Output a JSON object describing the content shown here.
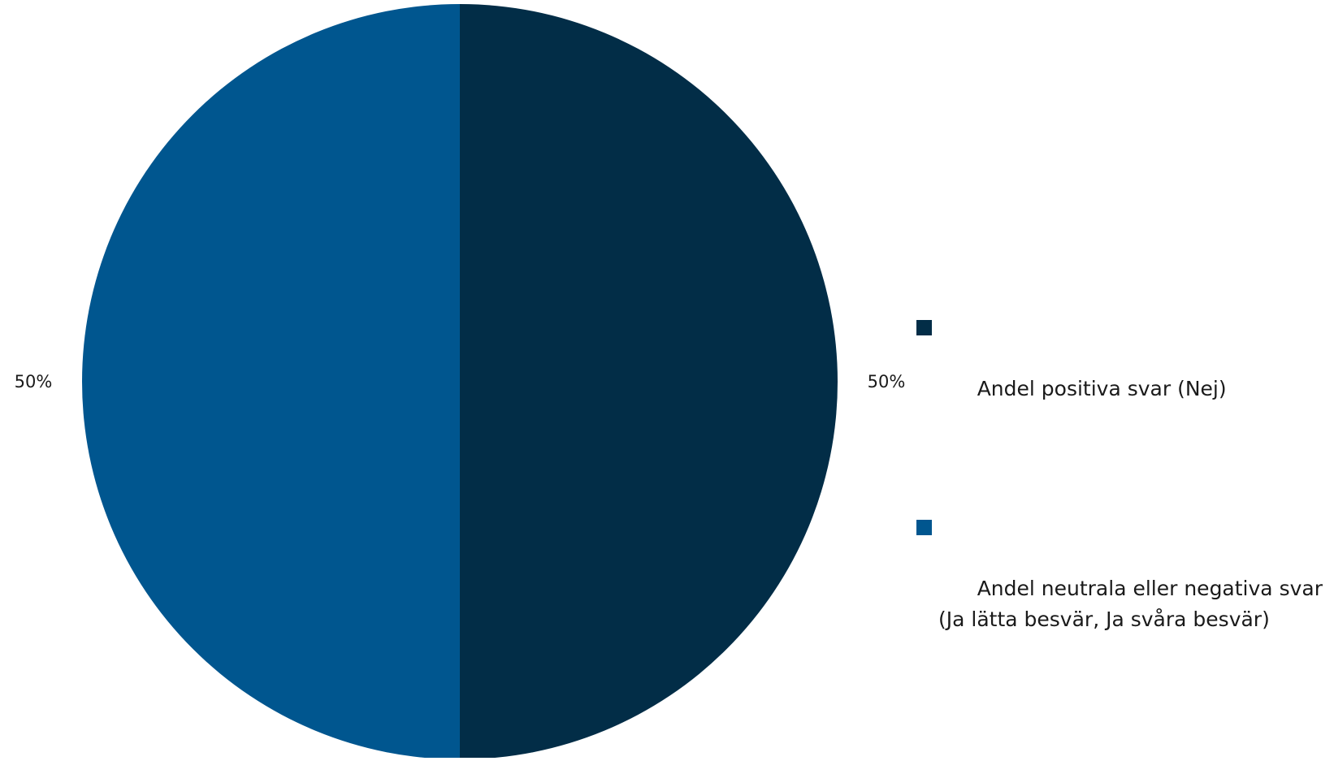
{
  "chart_data": {
    "type": "pie",
    "title": "",
    "slices": [
      {
        "name": "Andel positiva svar (Nej)",
        "value": 50,
        "label": "50%",
        "color": "#022d47"
      },
      {
        "name": "Andel neutrala eller negativa svar (Ja lätta besvär, Ja svåra besvär)",
        "value": 50,
        "label": "50%",
        "color": "#00568f"
      }
    ],
    "legend_position": "right"
  }
}
